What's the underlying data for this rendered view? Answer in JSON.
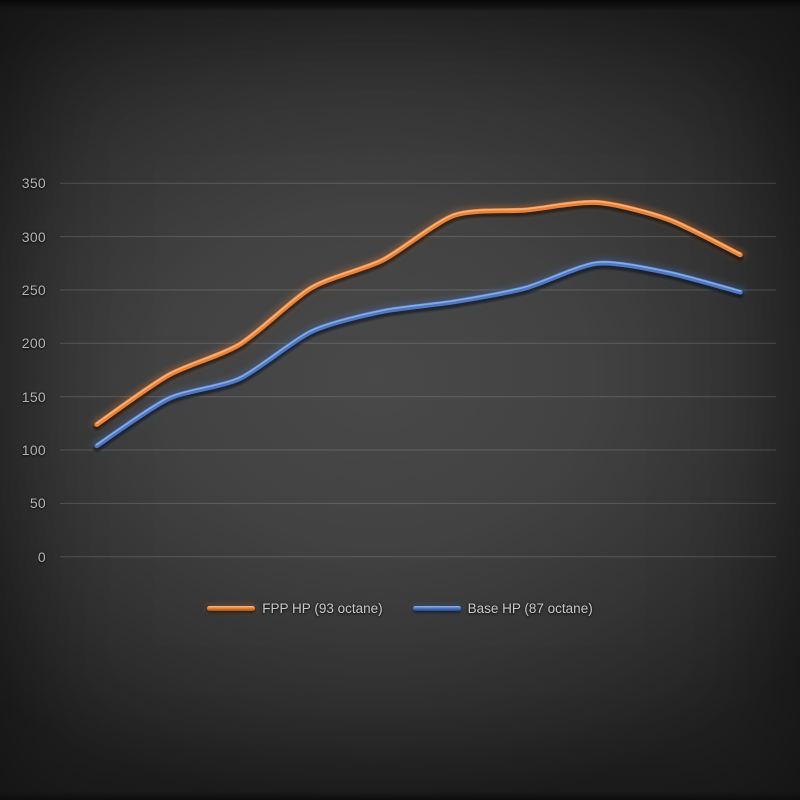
{
  "window": {
    "background_center_color": "#494949",
    "background_edge_color": "#222222"
  },
  "axes": {
    "y_ticks": [
      350,
      300,
      250,
      200,
      150,
      100,
      50,
      0
    ],
    "y_tick_color": "#b4b4b4",
    "gridline_color": "rgba(255,255,255,0.16)",
    "x_axis_labels_visible": false
  },
  "legend": {
    "items": [
      {
        "label": "FPP HP (93 octane)",
        "color": "#e8823a"
      },
      {
        "label": "Base HP (87 octane)",
        "color": "#4d79c4"
      }
    ]
  },
  "chart_data": {
    "type": "line",
    "title": "",
    "xlabel": "",
    "ylabel": "",
    "x_index": [
      1,
      2,
      3,
      4,
      5,
      6,
      7,
      8,
      9,
      10
    ],
    "x_tick_labels": [],
    "series": [
      {
        "name": "FPP HP (93 octane)",
        "color": "#e8823a",
        "highlight": "#ffc08a",
        "values": [
          124,
          170,
          199,
          252,
          278,
          320,
          325,
          332,
          316,
          283
        ]
      },
      {
        "name": "Base HP (87 octane)",
        "color": "#4d79c4",
        "highlight": "#9db9e8",
        "values": [
          104,
          148,
          167,
          211,
          230,
          239,
          252,
          275,
          266,
          248
        ]
      }
    ],
    "ylim": [
      0,
      350
    ],
    "y_tick_step": 50,
    "grid": "horizontal-only",
    "legend_position": "bottom",
    "smoothed_lines": true
  }
}
